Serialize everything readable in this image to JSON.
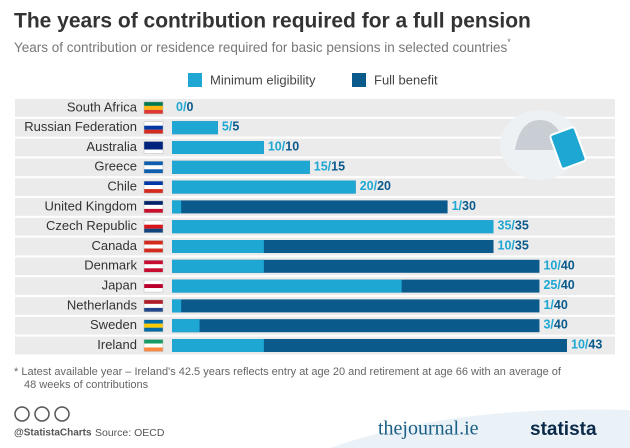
{
  "chart_data": {
    "type": "bar",
    "title": "The years of contribution required for a full pension",
    "subtitle": "Years of contribution or residence required for basic pensions in selected countries",
    "subtitle_mark": "*",
    "categories": [
      "South Africa",
      "Russian Federation",
      "Australia",
      "Greece",
      "Chile",
      "United Kingdom",
      "Czech Republic",
      "Canada",
      "Denmark",
      "Japan",
      "Netherlands",
      "Sweden",
      "Ireland"
    ],
    "series": [
      {
        "name": "Minimum eligibility",
        "color": "#1ea7d3",
        "values": [
          0,
          5,
          10,
          15,
          20,
          1,
          35,
          10,
          10,
          25,
          1,
          3,
          10
        ],
        "value_labels": [
          "0/",
          "5/",
          "10/",
          "15/",
          "20/",
          "1/",
          "35/",
          "10/",
          "10/",
          "25/",
          "1/",
          "3/",
          "10/"
        ]
      },
      {
        "name": "Full benefit",
        "color": "#0b5a8c",
        "values": [
          0,
          5,
          10,
          15,
          20,
          30,
          35,
          35,
          40,
          40,
          40,
          40,
          43
        ]
      }
    ],
    "xlim": [
      0,
      43
    ],
    "legend": "top",
    "footnote": [
      "* Latest available year – Ireland's 42.5 years reflects entry at age 20 and retirement at age 66 with an average of",
      "48 weeks of contributions"
    ],
    "handle": "@StatistaCharts",
    "source": "Source: OECD",
    "partner": "thejournal.ie",
    "brand": "statista"
  }
}
